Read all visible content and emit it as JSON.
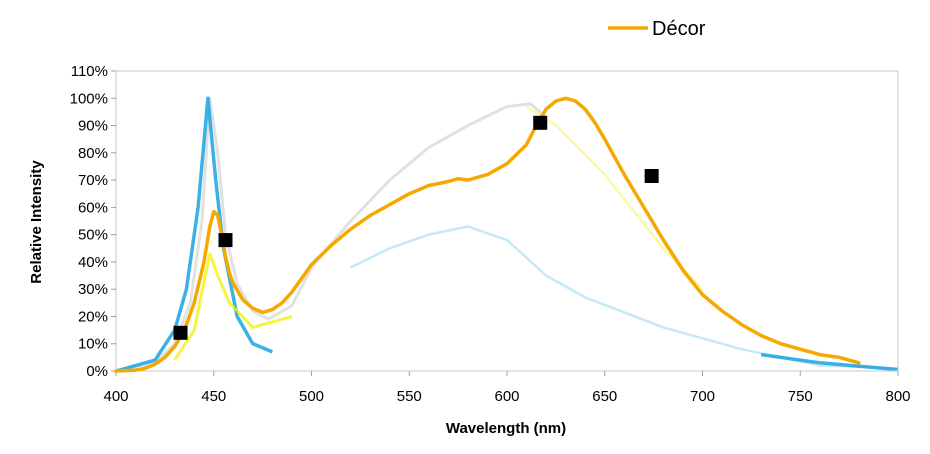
{
  "chart_data": {
    "type": "line",
    "xlabel": "Wavelength (nm)",
    "ylabel": "Relative Intensity",
    "xlim": [
      400,
      800
    ],
    "ylim": [
      0,
      1.1
    ],
    "x_ticks": [
      400,
      450,
      500,
      550,
      600,
      650,
      700,
      750,
      800
    ],
    "x_tick_labels": [
      "400",
      "450",
      "500",
      "550",
      "600",
      "650",
      "700",
      "750",
      "800"
    ],
    "y_ticks": [
      0,
      0.1,
      0.2,
      0.3,
      0.4,
      0.5,
      0.6,
      0.7,
      0.8,
      0.9,
      1.0,
      1.1
    ],
    "y_tick_labels": [
      "0%",
      "10%",
      "20%",
      "30%",
      "40%",
      "50%",
      "60%",
      "70%",
      "80%",
      "90%",
      "100%",
      "110%"
    ],
    "grid": false,
    "legend_position": "top-right",
    "series": [
      {
        "name": "Décor",
        "color": "#F5A800",
        "x": [
          400,
          410,
          415,
          420,
          425,
          430,
          435,
          440,
          445,
          448,
          450,
          452,
          454,
          456,
          458,
          460,
          465,
          470,
          475,
          480,
          485,
          490,
          495,
          500,
          510,
          520,
          530,
          540,
          550,
          560,
          570,
          575,
          580,
          590,
          600,
          610,
          615,
          620,
          625,
          630,
          635,
          640,
          645,
          650,
          660,
          670,
          680,
          690,
          700,
          710,
          720,
          730,
          740,
          750,
          760,
          770,
          780
        ],
        "y": [
          0.0,
          0.003,
          0.01,
          0.025,
          0.05,
          0.09,
          0.15,
          0.25,
          0.4,
          0.53,
          0.585,
          0.57,
          0.5,
          0.42,
          0.36,
          0.32,
          0.26,
          0.23,
          0.215,
          0.225,
          0.25,
          0.29,
          0.34,
          0.39,
          0.46,
          0.52,
          0.57,
          0.61,
          0.65,
          0.68,
          0.695,
          0.705,
          0.7,
          0.72,
          0.76,
          0.83,
          0.9,
          0.96,
          0.99,
          1.0,
          0.99,
          0.96,
          0.91,
          0.85,
          0.72,
          0.6,
          0.48,
          0.37,
          0.28,
          0.22,
          0.17,
          0.13,
          0.1,
          0.08,
          0.06,
          0.05,
          0.03
        ]
      }
    ],
    "markers": [
      {
        "x": 433,
        "y": 0.14
      },
      {
        "x": 456,
        "y": 0.48
      },
      {
        "x": 617,
        "y": 0.91
      },
      {
        "x": 674,
        "y": 0.715
      }
    ]
  }
}
